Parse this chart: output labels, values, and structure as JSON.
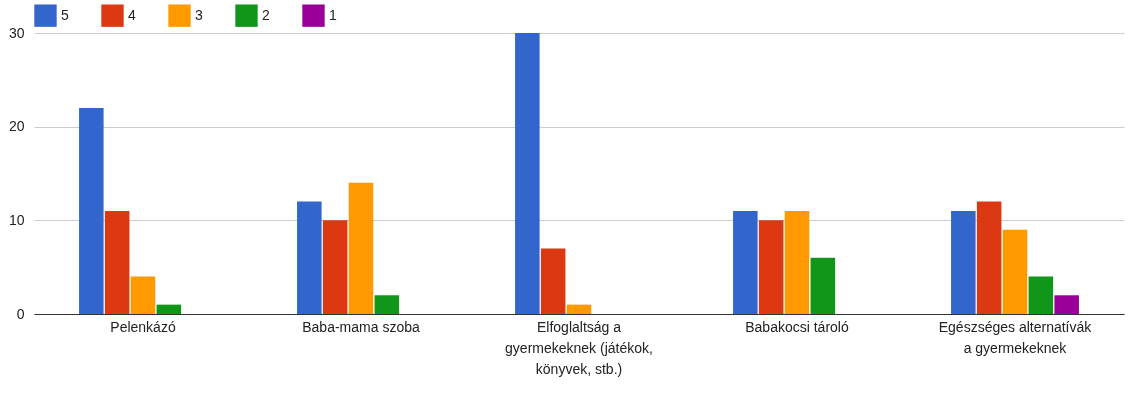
{
  "chart_data": {
    "type": "bar",
    "categories": [
      "Pelenkázó",
      "Baba-mama szoba",
      "Elfoglaltság a gyermekeknek (játékok, könyvek, stb.)",
      "Babakocsi tároló",
      "Egészséges alternatívák a gyermekeknek"
    ],
    "series": [
      {
        "name": "5",
        "color": "#3366cc",
        "values": [
          22,
          12,
          30,
          11,
          11
        ]
      },
      {
        "name": "4",
        "color": "#dc3912",
        "values": [
          11,
          10,
          7,
          10,
          12
        ]
      },
      {
        "name": "3",
        "color": "#ff9900",
        "values": [
          4,
          14,
          1,
          11,
          9
        ]
      },
      {
        "name": "2",
        "color": "#109618",
        "values": [
          1,
          2,
          0,
          6,
          4
        ]
      },
      {
        "name": "1",
        "color": "#990099",
        "values": [
          0,
          0,
          0,
          0,
          2
        ]
      }
    ],
    "ylim": [
      0,
      30
    ],
    "yticks": [
      0,
      10,
      20,
      30
    ],
    "grid": "y",
    "legend": "top left"
  }
}
